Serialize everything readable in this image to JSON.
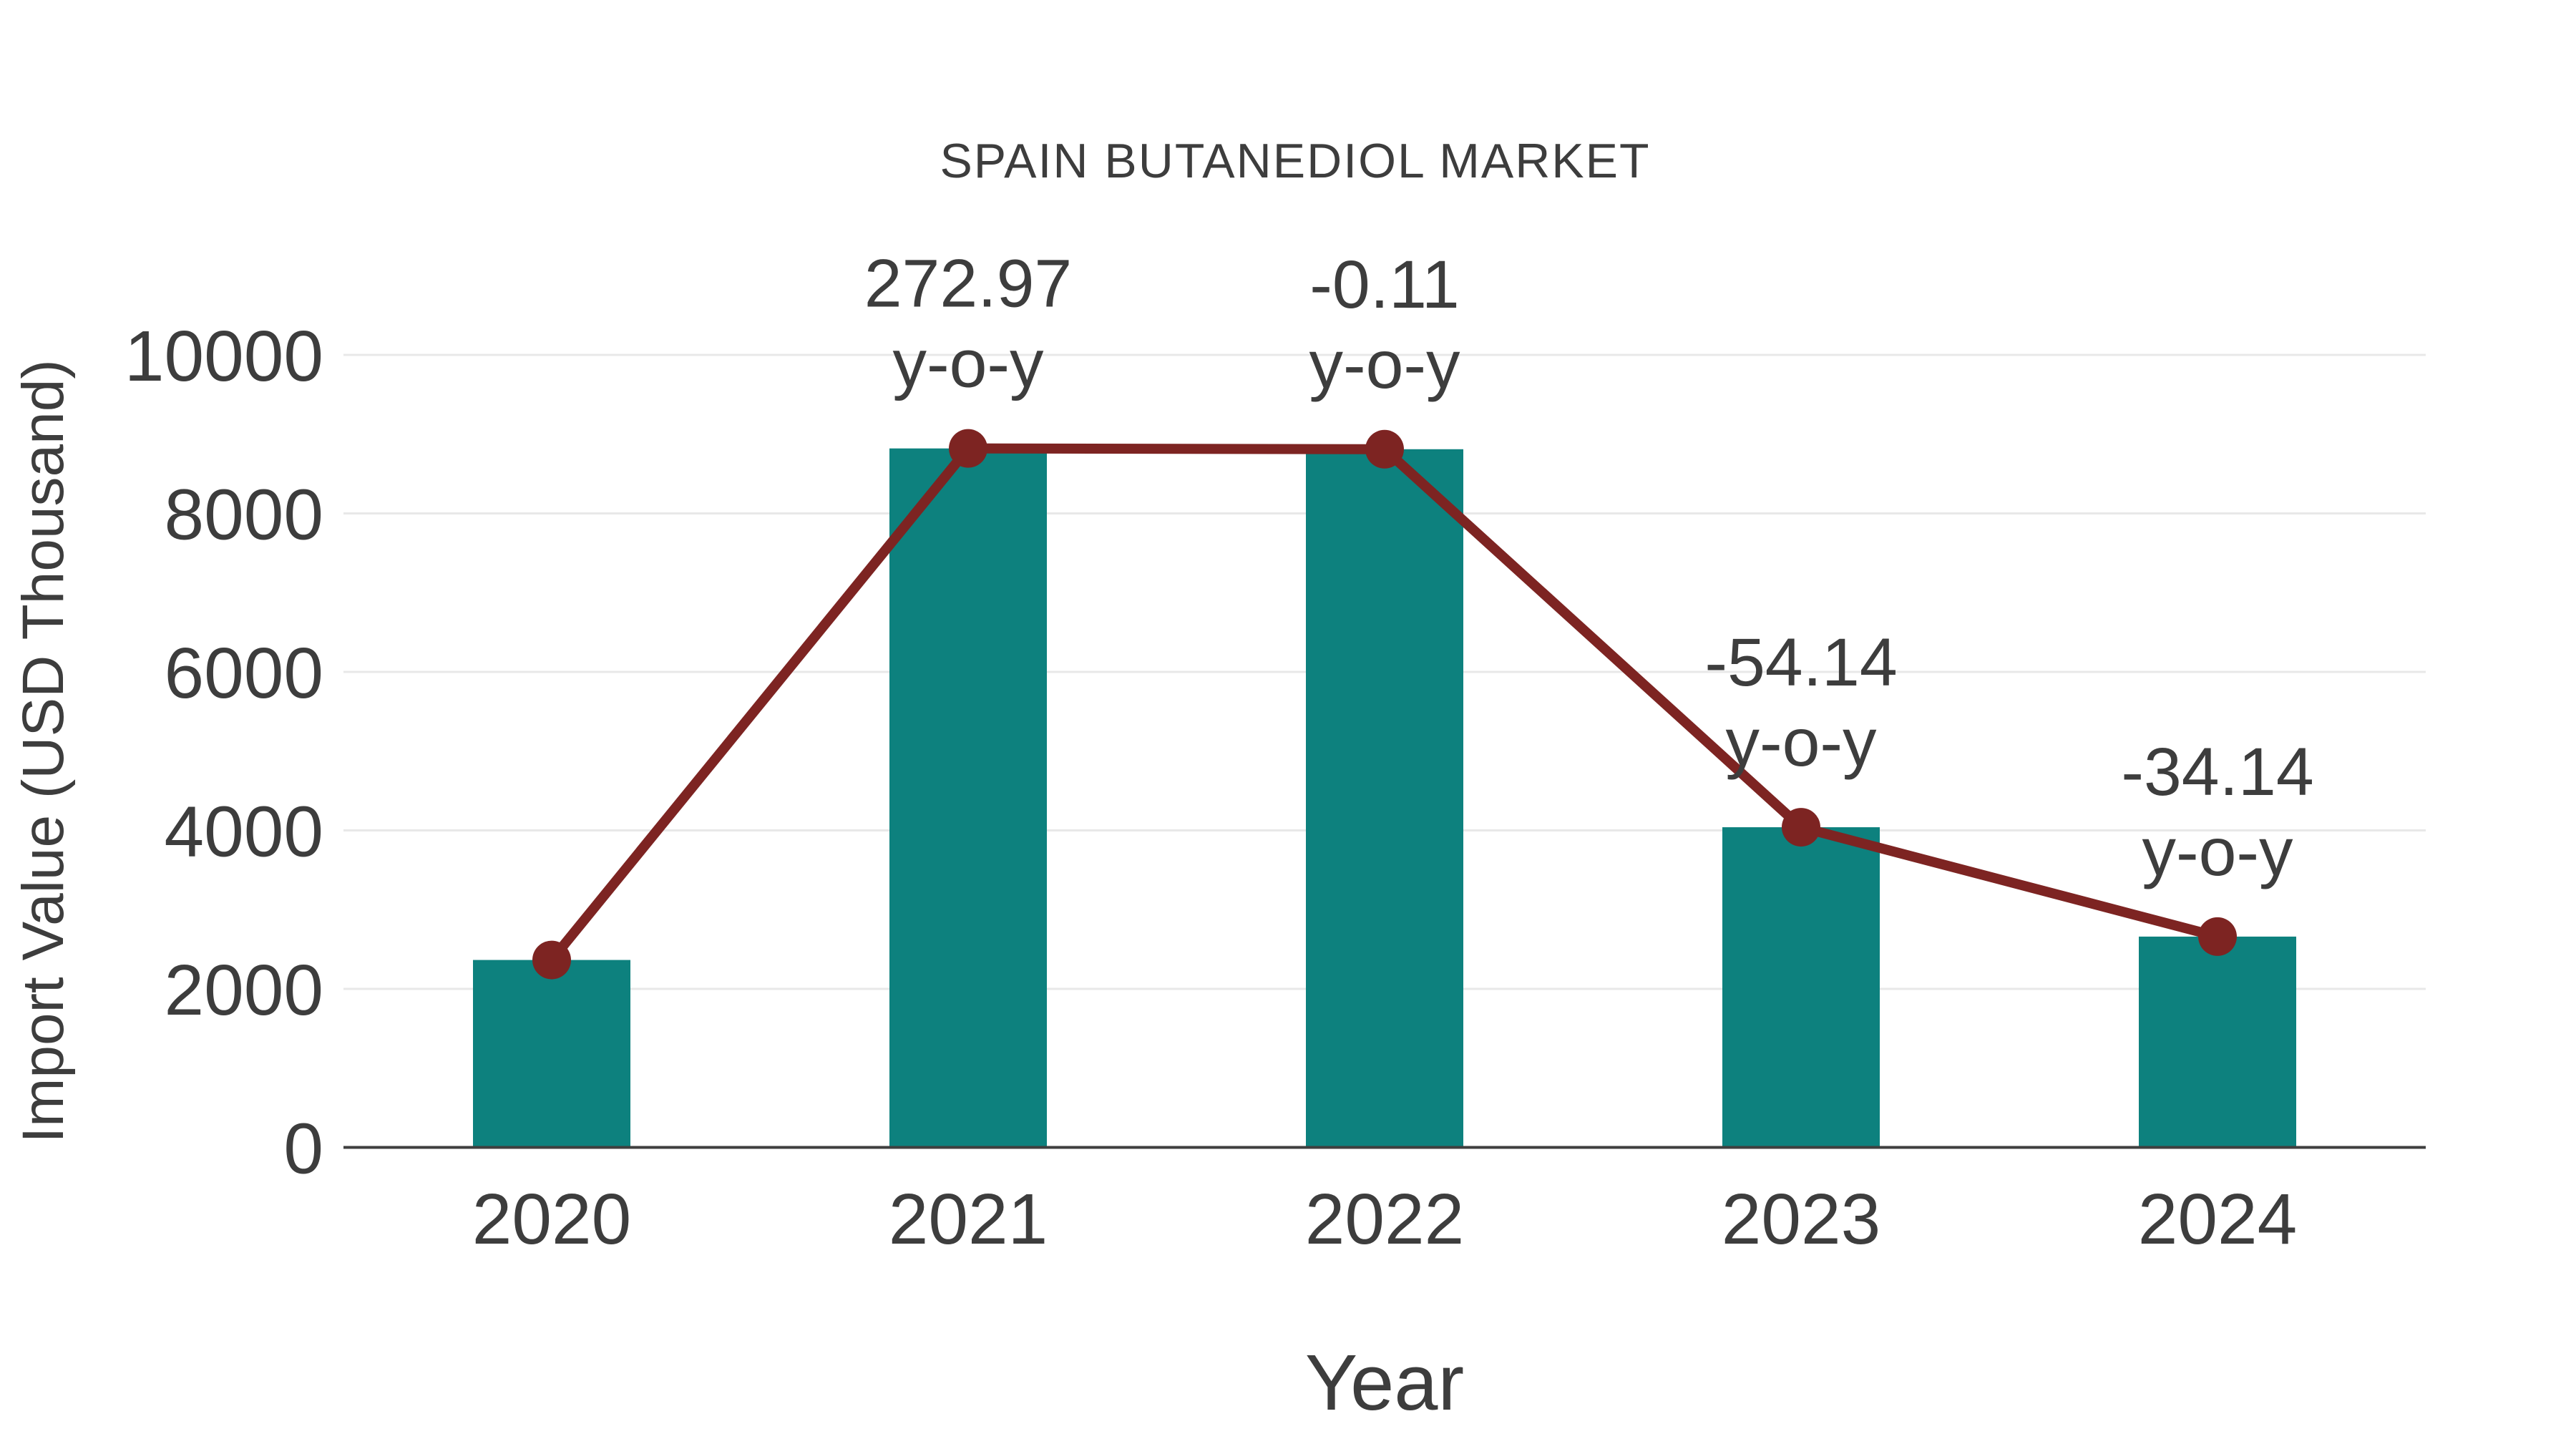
{
  "chart_data": {
    "type": "bar",
    "title": "SPAIN BUTANEDIOL MARKET",
    "xlabel": "Year",
    "ylabel": "Import Value (USD Thousand)",
    "categories": [
      "2020",
      "2021",
      "2022",
      "2023",
      "2024"
    ],
    "series": [
      {
        "name": "Import Value (USD Thousand)",
        "type": "bar",
        "values": [
          2365,
          8820,
          8810,
          4040,
          2660
        ],
        "color": "#0d817e"
      },
      {
        "name": "y-o-y",
        "type": "line",
        "values": [
          2365,
          8820,
          8810,
          4040,
          2660
        ],
        "color": "#7d2422"
      }
    ],
    "annotations": [
      {
        "category": "2021",
        "value_line": "272.97",
        "unit_line": "y-o-y"
      },
      {
        "category": "2022",
        "value_line": "-0.11",
        "unit_line": "y-o-y"
      },
      {
        "category": "2023",
        "value_line": "-54.14",
        "unit_line": "y-o-y"
      },
      {
        "category": "2024",
        "value_line": "-34.14",
        "unit_line": "y-o-y"
      }
    ],
    "ylim": [
      0,
      10000
    ],
    "yticks": [
      0,
      2000,
      4000,
      6000,
      8000,
      10000
    ],
    "grid": true,
    "legend": false
  },
  "colors": {
    "bar": "#0d817e",
    "line": "#7d2422",
    "marker": "#7d2422",
    "text": "#3d3d3d",
    "grid": "#e8e8e8",
    "axis": "#3f3f3f",
    "background": "#ffffff"
  }
}
